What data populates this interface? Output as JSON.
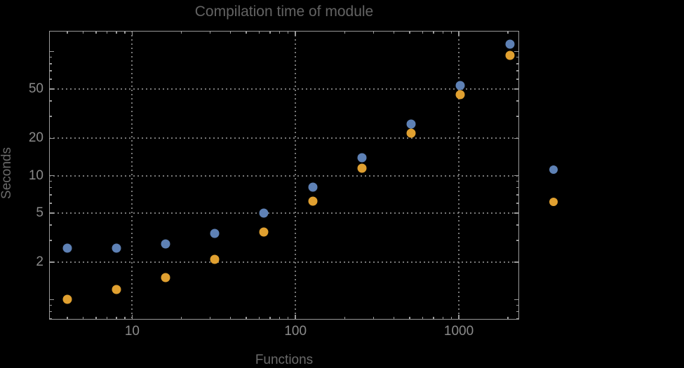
{
  "chart_data": {
    "type": "scatter",
    "title": "Compilation time of module",
    "xlabel": "Functions",
    "ylabel": "Seconds",
    "xscale": "log",
    "yscale": "log",
    "xlim": [
      3.1,
      2340
    ],
    "ylim": [
      0.69,
      147
    ],
    "grid": true,
    "legend_position": "outside-right",
    "x_ticks": {
      "labeled_values": [
        10,
        100,
        1000
      ],
      "labels": [
        "10",
        "100",
        "1000"
      ],
      "minor_values": [
        4,
        5,
        6,
        7,
        8,
        9,
        20,
        30,
        40,
        50,
        60,
        70,
        80,
        90,
        200,
        300,
        400,
        500,
        600,
        700,
        800,
        900,
        2000
      ]
    },
    "y_ticks": {
      "labeled_values": [
        2,
        5,
        10,
        20,
        50
      ],
      "labels": [
        "2",
        "5",
        "10",
        "20",
        "50"
      ],
      "unlabeled_major_values": [
        1,
        100
      ],
      "minor_values": [
        0.7,
        0.8,
        0.9,
        3,
        4,
        6,
        7,
        8,
        9,
        30,
        40,
        60,
        70,
        80,
        90
      ]
    },
    "gridlines_x": [
      10,
      100,
      1000
    ],
    "gridlines_y": [
      2,
      5,
      10,
      20,
      50
    ],
    "x": [
      4,
      8,
      16,
      32,
      64,
      128,
      256,
      512,
      1024,
      2048
    ],
    "series": [
      {
        "name": "series-1",
        "label": "",
        "color": "#5e81b5",
        "values": [
          2.6,
          2.6,
          2.8,
          3.4,
          5.0,
          8.1,
          14,
          26,
          53,
          115
        ]
      },
      {
        "name": "series-2",
        "label": "",
        "color": "#e0a030",
        "values": [
          1.0,
          1.2,
          1.5,
          2.1,
          3.5,
          6.2,
          11.5,
          22,
          45,
          93
        ]
      }
    ]
  },
  "colors": {
    "background": "#000000",
    "frame": "#9a9a9a",
    "grid": "#787878",
    "tick_label": "#8a8a8a",
    "title": "#636363",
    "axis_label": "#6a6a6a"
  }
}
